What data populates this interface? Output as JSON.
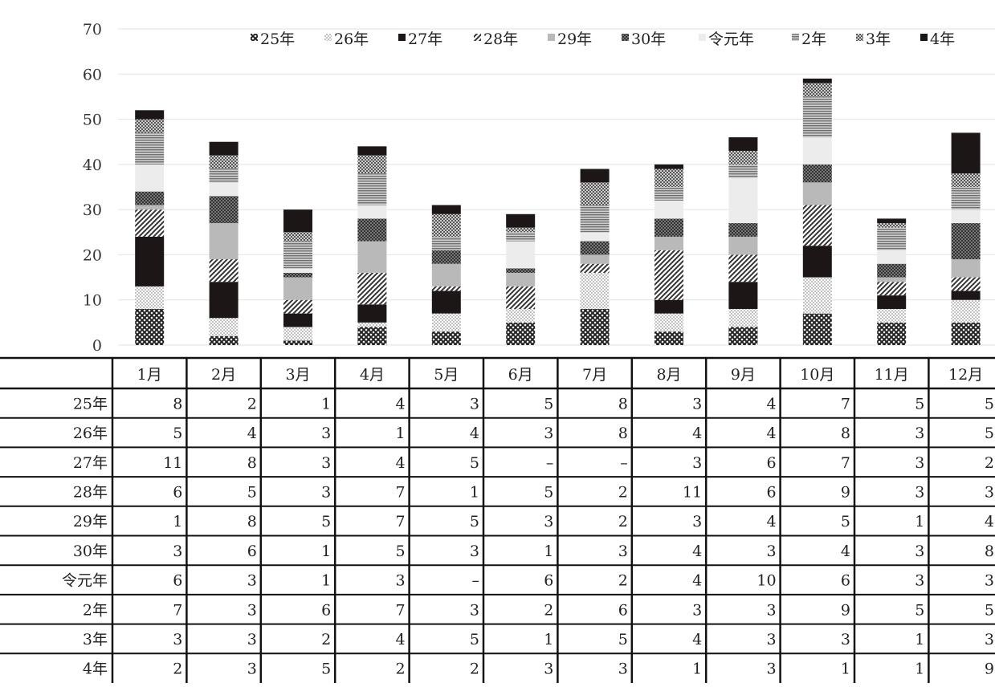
{
  "chart_data": {
    "type": "bar",
    "stacked": true,
    "categories": [
      "1月",
      "2月",
      "3月",
      "4月",
      "5月",
      "6月",
      "7月",
      "8月",
      "9月",
      "10月",
      "11月",
      "12月"
    ],
    "ylim": [
      0,
      70
    ],
    "yticks": [
      0,
      10,
      20,
      30,
      40,
      50,
      60,
      70
    ],
    "grid": true,
    "legend_position": "top",
    "series": [
      {
        "name": "25年",
        "values": [
          8,
          2,
          1,
          4,
          3,
          5,
          8,
          3,
          4,
          7,
          5,
          5
        ],
        "labels": [
          "8",
          "2",
          "1",
          "4",
          "3",
          "5",
          "8",
          "3",
          "4",
          "7",
          "5",
          "5"
        ],
        "color": "#2b2b2b",
        "pattern": "crosshatch"
      },
      {
        "name": "26年",
        "values": [
          5,
          4,
          3,
          1,
          4,
          3,
          8,
          4,
          4,
          8,
          3,
          5
        ],
        "labels": [
          "5",
          "4",
          "3",
          "1",
          "4",
          "3",
          "8",
          "4",
          "4",
          "8",
          "3",
          "5"
        ],
        "color": "#d8d8d8",
        "pattern": "dots"
      },
      {
        "name": "27年",
        "values": [
          11,
          8,
          3,
          4,
          5,
          0,
          0,
          3,
          6,
          7,
          3,
          2
        ],
        "labels": [
          "11",
          "8",
          "3",
          "4",
          "5",
          "–",
          "–",
          "3",
          "6",
          "7",
          "3",
          "2"
        ],
        "color": "#1c1616",
        "pattern": "solid"
      },
      {
        "name": "28年",
        "values": [
          6,
          5,
          3,
          7,
          1,
          5,
          2,
          11,
          6,
          9,
          3,
          3
        ],
        "labels": [
          "6",
          "5",
          "3",
          "7",
          "1",
          "5",
          "2",
          "11",
          "6",
          "9",
          "3",
          "3"
        ],
        "color": "#555555",
        "pattern": "diagonal"
      },
      {
        "name": "29年",
        "values": [
          1,
          8,
          5,
          7,
          5,
          3,
          2,
          3,
          4,
          5,
          1,
          4
        ],
        "labels": [
          "1",
          "8",
          "5",
          "7",
          "5",
          "3",
          "2",
          "3",
          "4",
          "5",
          "1",
          "4"
        ],
        "color": "#b9b9b9",
        "pattern": "solid"
      },
      {
        "name": "30年",
        "values": [
          3,
          6,
          1,
          5,
          3,
          1,
          3,
          4,
          3,
          4,
          3,
          8
        ],
        "labels": [
          "3",
          "6",
          "1",
          "5",
          "3",
          "1",
          "3",
          "4",
          "3",
          "4",
          "3",
          "8"
        ],
        "color": "#333333",
        "pattern": "dense-cross"
      },
      {
        "name": "令元年",
        "values": [
          6,
          3,
          1,
          3,
          0,
          6,
          2,
          4,
          10,
          6,
          3,
          3
        ],
        "labels": [
          "6",
          "3",
          "1",
          "3",
          "–",
          "6",
          "2",
          "4",
          "10",
          "6",
          "3",
          "3"
        ],
        "color": "#ececec",
        "pattern": "solid"
      },
      {
        "name": "2年",
        "values": [
          7,
          3,
          6,
          7,
          3,
          2,
          6,
          3,
          3,
          9,
          5,
          5
        ],
        "labels": [
          "7",
          "3",
          "6",
          "7",
          "3",
          "2",
          "6",
          "3",
          "3",
          "9",
          "5",
          "5"
        ],
        "color": "#9a9a9a",
        "pattern": "horizontal"
      },
      {
        "name": "3年",
        "values": [
          3,
          3,
          2,
          4,
          5,
          1,
          5,
          4,
          3,
          3,
          1,
          3
        ],
        "labels": [
          "3",
          "3",
          "2",
          "4",
          "5",
          "1",
          "5",
          "4",
          "3",
          "3",
          "1",
          "3"
        ],
        "color": "#7a7a7a",
        "pattern": "checker"
      },
      {
        "name": "4年",
        "values": [
          2,
          3,
          5,
          2,
          2,
          3,
          3,
          1,
          3,
          1,
          1,
          9
        ],
        "labels": [
          "2",
          "3",
          "5",
          "2",
          "2",
          "3",
          "3",
          "1",
          "3",
          "1",
          "1",
          "9"
        ],
        "color": "#1c1616",
        "pattern": "solid"
      }
    ]
  }
}
